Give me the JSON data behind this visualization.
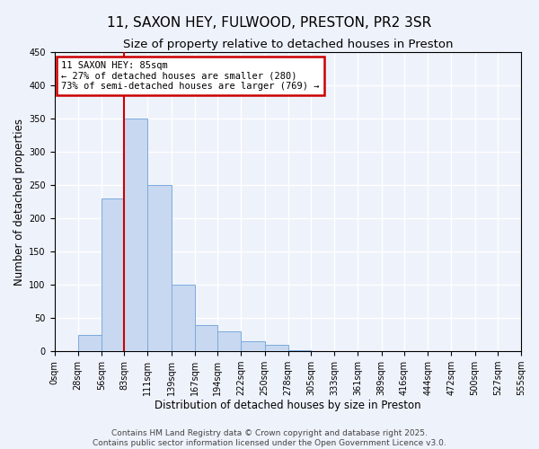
{
  "title1": "11, SAXON HEY, FULWOOD, PRESTON, PR2 3SR",
  "title2": "Size of property relative to detached houses in Preston",
  "xlabel": "Distribution of detached houses by size in Preston",
  "ylabel": "Number of detached properties",
  "bin_edges": [
    0,
    28,
    56,
    83,
    111,
    139,
    167,
    194,
    222,
    250,
    278,
    305,
    333,
    361,
    389,
    416,
    444,
    472,
    500,
    527,
    555
  ],
  "bar_heights": [
    0,
    25,
    230,
    350,
    250,
    100,
    40,
    30,
    15,
    10,
    2,
    0,
    0,
    0,
    0,
    0,
    0,
    0,
    0,
    0
  ],
  "bar_color": "#c8d8f0",
  "bar_edge_color": "#7aaadd",
  "vline_x": 83,
  "vline_color": "#cc0000",
  "annotation_title": "11 SAXON HEY: 85sqm",
  "annotation_line2": "← 27% of detached houses are smaller (280)",
  "annotation_line3": "73% of semi-detached houses are larger (769) →",
  "annotation_box_color": "#cc0000",
  "ylim": [
    0,
    450
  ],
  "yticks": [
    0,
    50,
    100,
    150,
    200,
    250,
    300,
    350,
    400,
    450
  ],
  "xtick_labels": [
    "0sqm",
    "28sqm",
    "56sqm",
    "83sqm",
    "111sqm",
    "139sqm",
    "167sqm",
    "194sqm",
    "222sqm",
    "250sqm",
    "278sqm",
    "305sqm",
    "333sqm",
    "361sqm",
    "389sqm",
    "416sqm",
    "444sqm",
    "472sqm",
    "500sqm",
    "527sqm",
    "555sqm"
  ],
  "footer1": "Contains HM Land Registry data © Crown copyright and database right 2025.",
  "footer2": "Contains public sector information licensed under the Open Government Licence v3.0.",
  "bg_color": "#eef2fb",
  "grid_color": "#ffffff",
  "title_fontsize": 11,
  "subtitle_fontsize": 9.5,
  "axis_label_fontsize": 8.5,
  "tick_fontsize": 7,
  "footer_fontsize": 6.5
}
